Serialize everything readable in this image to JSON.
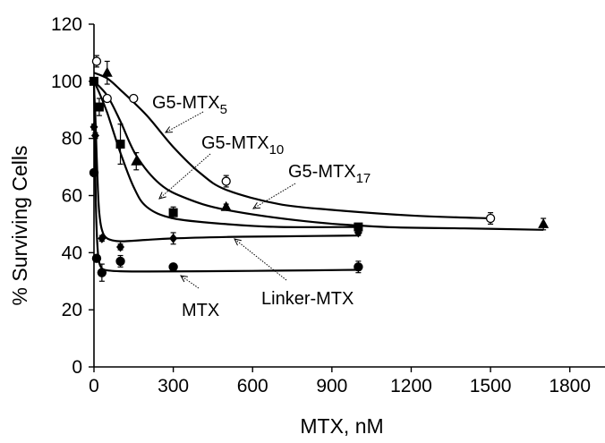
{
  "chart_data": {
    "type": "scatter",
    "title": "",
    "xlabel": "MTX, nM",
    "ylabel": "% Surviving Cells",
    "xlim": [
      0,
      1950
    ],
    "ylim": [
      0,
      120
    ],
    "xticks": [
      0,
      300,
      600,
      900,
      1200,
      1500,
      1800
    ],
    "yticks": [
      0,
      20,
      40,
      60,
      80,
      100,
      120
    ],
    "xtick_labels": [
      "0",
      "300",
      "600",
      "900",
      "1200",
      "1500",
      "1800"
    ],
    "ytick_labels": [
      "0",
      "20",
      "40",
      "60",
      "80",
      "100",
      "120"
    ],
    "grid": false,
    "legend": "none (series labeled with annotation arrows)",
    "series": [
      {
        "name": "G5-MTX5",
        "label_main": "G5-MTX",
        "label_sub": "5",
        "marker": "open-circle",
        "color": "#000000",
        "x": [
          10,
          50,
          150,
          500,
          1500
        ],
        "y": [
          107,
          94,
          94,
          65,
          52
        ],
        "err": [
          2,
          1,
          1,
          2,
          2
        ],
        "fit": {
          "x": [
            0,
            50,
            100,
            200,
            300,
            400,
            500,
            700,
            900,
            1200,
            1500
          ],
          "y": [
            103,
            101,
            97,
            88,
            77,
            68,
            62,
            57,
            55,
            53,
            52
          ]
        }
      },
      {
        "name": "G5-MTX10",
        "label_main": "G5-MTX",
        "label_sub": "10",
        "marker": "filled-square",
        "color": "#000000",
        "x": [
          0,
          20,
          100,
          300,
          1000
        ],
        "y": [
          100,
          91,
          78,
          54,
          49
        ],
        "err": [
          1,
          3,
          7,
          2,
          1
        ],
        "fit": {
          "x": [
            0,
            20,
            50,
            100,
            150,
            200,
            300,
            500,
            700,
            1000
          ],
          "y": [
            100,
            96,
            89,
            75,
            63,
            56,
            52,
            50,
            49,
            49
          ]
        }
      },
      {
        "name": "G5-MTX17",
        "label_main": "G5-MTX",
        "label_sub": "17",
        "marker": "filled-triangle",
        "color": "#000000",
        "x": [
          50,
          160,
          500,
          1700
        ],
        "y": [
          103,
          72,
          56,
          50
        ],
        "err": [
          4,
          3,
          1,
          2
        ],
        "fit": {
          "x": [
            0,
            50,
            100,
            160,
            250,
            350,
            500,
            800,
            1100,
            1400,
            1700
          ],
          "y": [
            100,
            95,
            86,
            74,
            64,
            59,
            55,
            51,
            49,
            48.5,
            48
          ]
        }
      },
      {
        "name": "Linker-MTX",
        "label_main": "Linker-MTX",
        "label_sub": "",
        "marker": "filled-diamond",
        "color": "#000000",
        "x": [
          0,
          5,
          30,
          100,
          300,
          1000
        ],
        "y": [
          84,
          81,
          45,
          42,
          45,
          47
        ],
        "err": [
          1,
          1,
          1,
          1,
          2,
          1
        ],
        "fit": {
          "x": [
            0,
            5,
            10,
            15,
            20,
            30,
            50,
            100,
            200,
            300,
            500,
            700,
            1000
          ],
          "y": [
            98,
            88,
            74,
            62,
            54,
            48,
            45,
            44,
            44.5,
            45,
            45.5,
            45.7,
            46
          ]
        }
      },
      {
        "name": "MTX",
        "label_main": "MTX",
        "label_sub": "",
        "marker": "filled-circle",
        "color": "#000000",
        "x": [
          0,
          10,
          30,
          100,
          300,
          1000
        ],
        "y": [
          68,
          38,
          33,
          37,
          35,
          35
        ],
        "err": [
          1,
          1,
          3,
          2,
          1,
          2
        ],
        "fit": {
          "x": [
            0,
            3,
            6,
            10,
            15,
            20,
            30,
            50,
            100,
            200,
            400,
            700,
            1000
          ],
          "y": [
            100,
            80,
            62,
            48,
            40,
            36.5,
            34.5,
            33.8,
            33.5,
            33.4,
            33.5,
            33.7,
            34
          ]
        }
      }
    ],
    "annotations": [
      {
        "series": "G5-MTX5"
      },
      {
        "series": "G5-MTX10"
      },
      {
        "series": "G5-MTX17"
      },
      {
        "series": "Linker-MTX"
      },
      {
        "series": "MTX"
      }
    ]
  }
}
